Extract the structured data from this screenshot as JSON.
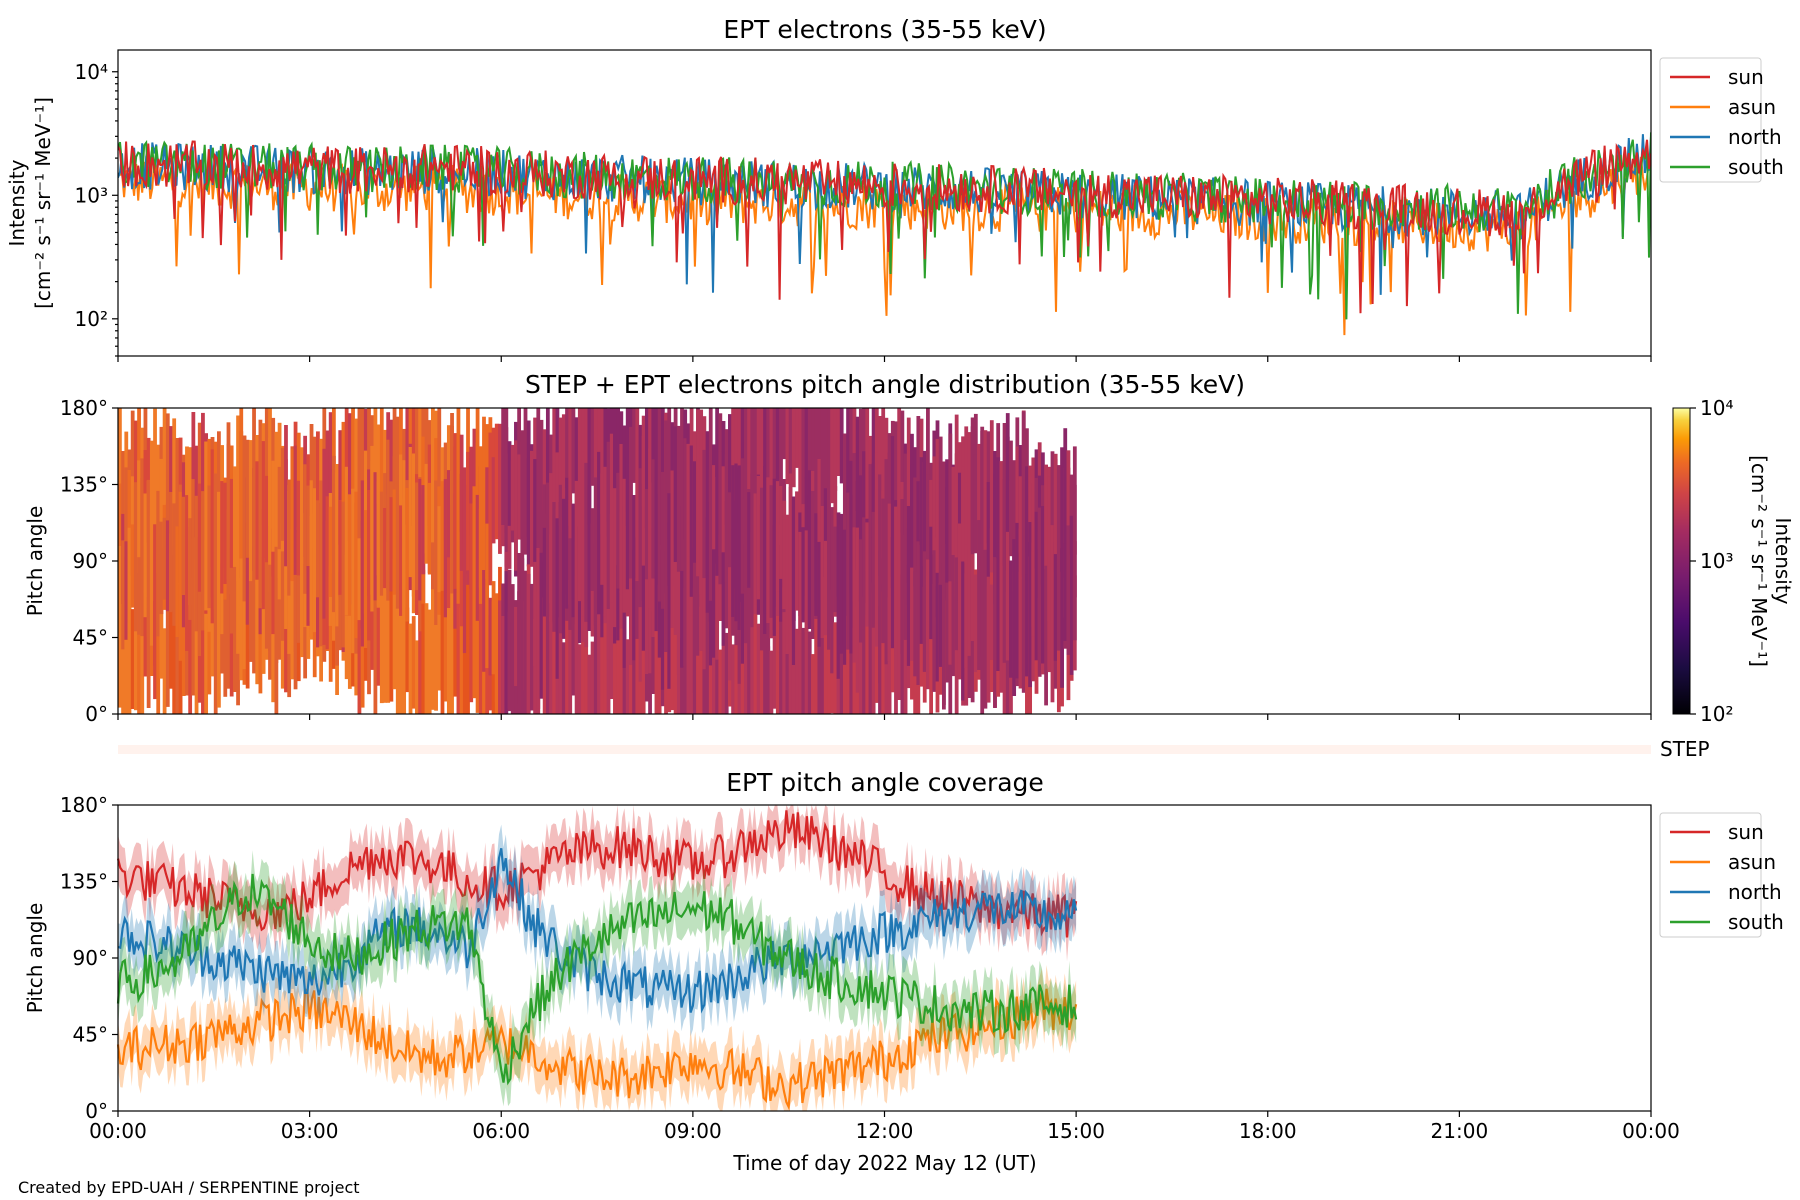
{
  "footer": {
    "credit": "Created by EPD-UAH / SERPENTINE project"
  },
  "x_axis": {
    "label": "Time of day 2022 May 12 (UT)",
    "ticks": [
      "00:00",
      "03:00",
      "06:00",
      "09:00",
      "12:00",
      "15:00",
      "18:00",
      "21:00",
      "00:00"
    ],
    "range_hours": [
      0,
      24
    ]
  },
  "legend_entries": [
    "sun",
    "asun",
    "north",
    "south"
  ],
  "colors": {
    "sun": "#d62728",
    "asun": "#ff7f0e",
    "north": "#1f77b4",
    "south": "#2ca02c",
    "step_strip": "#fff2ed"
  },
  "chart_data": [
    {
      "type": "line",
      "panel": "intensity",
      "title": "EPT electrons (35-55 keV)",
      "ylabel": "Intensity",
      "yunit": "[cm⁻² s⁻¹ sr⁻¹ MeV⁻¹]",
      "yscale": "log",
      "ylim": [
        50,
        15000
      ],
      "yticks": [
        "10²",
        "10³",
        "10⁴"
      ],
      "legend": "upper-right outside",
      "x": [
        0,
        1,
        2,
        3,
        4,
        5,
        6,
        7,
        8,
        9,
        10,
        11,
        12,
        13,
        14,
        15,
        16,
        17,
        18,
        19,
        20,
        21,
        22,
        23,
        24
      ],
      "series": [
        {
          "name": "sun",
          "values": [
            1800,
            1750,
            1700,
            1650,
            1600,
            1700,
            1550,
            1450,
            1400,
            1350,
            1300,
            1250,
            1200,
            1150,
            1100,
            1050,
            1000,
            950,
            900,
            850,
            800,
            750,
            700,
            1500,
            2200
          ]
        },
        {
          "name": "asun",
          "values": [
            1300,
            1250,
            1200,
            1150,
            1100,
            1150,
            1050,
            1000,
            950,
            900,
            880,
            850,
            820,
            800,
            780,
            750,
            720,
            700,
            650,
            620,
            600,
            560,
            520,
            1000,
            1600
          ]
        },
        {
          "name": "north",
          "values": [
            1750,
            1700,
            1650,
            1600,
            1550,
            1600,
            1500,
            1400,
            1350,
            1300,
            1250,
            1200,
            1150,
            1100,
            1050,
            1000,
            950,
            900,
            850,
            800,
            760,
            720,
            680,
            1400,
            2100
          ]
        },
        {
          "name": "south",
          "values": [
            1800,
            1750,
            1700,
            1650,
            1600,
            1650,
            1550,
            1450,
            1400,
            1350,
            1300,
            1250,
            1200,
            1150,
            1100,
            1050,
            1000,
            950,
            900,
            860,
            820,
            780,
            740,
            1450,
            2150
          ]
        }
      ]
    },
    {
      "type": "heatmap",
      "panel": "pad",
      "title": "STEP + EPT electrons pitch angle distribution (35-55 keV)",
      "ylabel": "Pitch angle",
      "yticks": [
        "0°",
        "45°",
        "90°",
        "135°",
        "180°"
      ],
      "ylim": [
        0,
        180
      ],
      "data_x_range_hours": [
        0,
        15
      ],
      "colorbar": {
        "label": "Intensity",
        "unit": "[cm⁻² s⁻¹ sr⁻¹ MeV⁻¹]",
        "scale": "log",
        "range": [
          100,
          10000
        ],
        "ticks": [
          "10²",
          "10³",
          "10⁴"
        ],
        "colormap": "inferno"
      }
    },
    {
      "type": "strip",
      "panel": "step",
      "label": "STEP"
    },
    {
      "type": "line",
      "panel": "coverage",
      "title": "EPT pitch angle coverage",
      "ylabel": "Pitch angle",
      "yticks": [
        "0°",
        "45°",
        "90°",
        "135°",
        "180°"
      ],
      "ylim": [
        0,
        180
      ],
      "legend": "upper-right outside",
      "x": [
        0,
        0.5,
        1,
        1.5,
        2,
        2.5,
        3,
        3.5,
        4,
        4.5,
        5,
        5.5,
        6,
        6.5,
        7,
        7.5,
        8,
        8.5,
        9,
        9.5,
        10,
        10.5,
        11,
        11.5,
        12,
        12.5,
        13,
        13.5,
        14,
        14.5,
        15
      ],
      "series": [
        {
          "name": "sun",
          "values": [
            140,
            135,
            130,
            125,
            120,
            118,
            125,
            140,
            150,
            150,
            145,
            135,
            130,
            140,
            150,
            155,
            155,
            150,
            145,
            150,
            160,
            165,
            160,
            150,
            140,
            130,
            125,
            120,
            118,
            115,
            115
          ]
        },
        {
          "name": "asun",
          "values": [
            35,
            38,
            40,
            45,
            50,
            55,
            60,
            55,
            45,
            35,
            30,
            35,
            40,
            35,
            25,
            20,
            20,
            25,
            30,
            25,
            20,
            15,
            20,
            25,
            30,
            40,
            45,
            50,
            55,
            60,
            60
          ]
        },
        {
          "name": "north",
          "values": [
            105,
            100,
            95,
            90,
            85,
            80,
            75,
            85,
            100,
            110,
            105,
            95,
            150,
            110,
            90,
            80,
            75,
            70,
            70,
            75,
            85,
            90,
            95,
            100,
            105,
            110,
            115,
            120,
            118,
            115,
            112
          ]
        },
        {
          "name": "south",
          "values": [
            75,
            80,
            90,
            110,
            130,
            120,
            100,
            90,
            95,
            105,
            110,
            110,
            20,
            60,
            85,
            100,
            110,
            115,
            120,
            115,
            100,
            90,
            80,
            75,
            70,
            65,
            60,
            58,
            60,
            62,
            62
          ]
        }
      ]
    }
  ]
}
